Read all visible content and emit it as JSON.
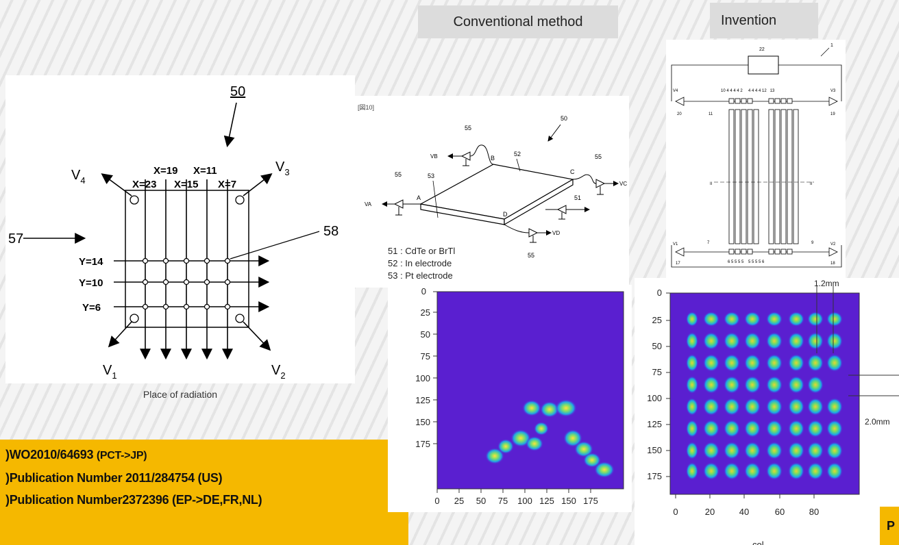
{
  "headers": {
    "conventional": "Conventional method",
    "invention": "Invention"
  },
  "left_diagram": {
    "ref_50": "50",
    "ref_57": "57",
    "ref_58": "58",
    "v1": "V",
    "v1_sub": "1",
    "v2": "V",
    "v2_sub": "2",
    "v3": "V",
    "v3_sub": "3",
    "v4": "V",
    "v4_sub": "4",
    "x_top": [
      "X=19",
      "X=11"
    ],
    "x_bottom": [
      "X=23",
      "X=15",
      "X=7"
    ],
    "y_labels": [
      "Y=14",
      "Y=10",
      "Y=6"
    ],
    "caption": "Place of radiation"
  },
  "conventional_diagram": {
    "fig_label": "[図10]",
    "ref_50": "50",
    "ref_52": "52",
    "ref_53": "53",
    "ref_55": "55",
    "ref_51": "51",
    "corner_a": "A",
    "corner_b": "B",
    "corner_c": "C",
    "corner_d": "D",
    "va": "VA",
    "vb": "VB",
    "vc": "VC",
    "vd": "VD",
    "legend": [
      "51 : CdTe or BrTl",
      "52 : In electrode",
      "53 : Pt electrode"
    ]
  },
  "invention_diagram": {
    "ref_1": "1",
    "ref_22": "22",
    "top_numbers": "10 4 4 4 4 2     4 4 4 4 12   13",
    "bottom_numbers": "6 5 5 5 5    5 5 5 5 6",
    "left_v": "V4",
    "right_v": "V3",
    "bl_v": "V1",
    "br_v": "V2",
    "label_20": "20",
    "label_19": "19",
    "label_17": "17",
    "label_18": "18",
    "label_11": "11",
    "label_7": "7",
    "label_9": "9",
    "label_II": "II"
  },
  "conventional_plot": {
    "y_ticks": [
      "0",
      "25",
      "50",
      "75",
      "100",
      "125",
      "150",
      "175"
    ],
    "x_ticks": [
      "0",
      "25",
      "50",
      "75",
      "100",
      "125",
      "150",
      "175"
    ],
    "background": "#5a1fd0"
  },
  "invention_plot": {
    "y_ticks": [
      "0",
      "25",
      "50",
      "75",
      "100",
      "125",
      "150",
      "175"
    ],
    "x_ticks": [
      "0",
      "20",
      "40",
      "60",
      "80"
    ],
    "x_label_partial": "col",
    "annotation_top": "1.2mm",
    "annotation_right": "2.0mm",
    "background": "#5a1fd0"
  },
  "publications": {
    "line1_main": "WO2010/64693",
    "line1_small": "(PCT->JP)",
    "line2": "Publication Number 2011/284754 (US)",
    "line3": "Publication Number2372396 (EP->DE,FR,NL)",
    "prefix": ")"
  },
  "corner_box_letter": "P",
  "colors": {
    "yellow": "#f5b800",
    "plot_purple": "#5a1fd0"
  }
}
